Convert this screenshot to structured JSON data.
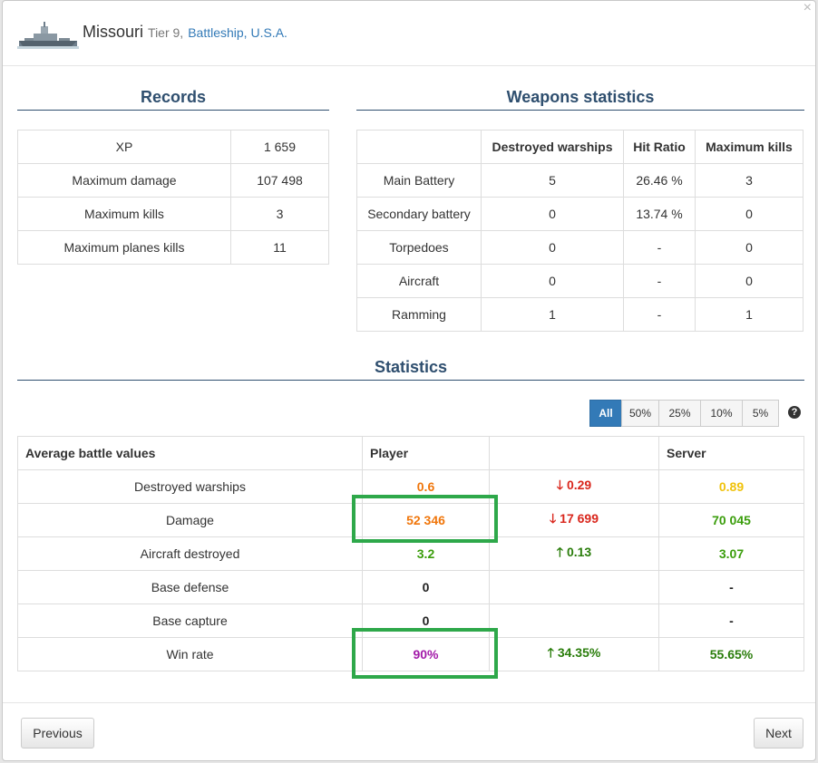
{
  "header": {
    "ship_name": "Missouri",
    "tier": "Tier 9,",
    "type": "Battleship,",
    "nation": "U.S.A."
  },
  "records": {
    "title": "Records",
    "rows": [
      {
        "label": "XP",
        "value": "1 659"
      },
      {
        "label": "Maximum damage",
        "value": "107 498"
      },
      {
        "label": "Maximum kills",
        "value": "3"
      },
      {
        "label": "Maximum planes kills",
        "value": "11"
      }
    ]
  },
  "weapons": {
    "title": "Weapons statistics",
    "headers": [
      "",
      "Destroyed warships",
      "Hit Ratio",
      "Maximum kills"
    ],
    "rows": [
      {
        "label": "Main Battery",
        "destroyed": "5",
        "hit": "26.46 %",
        "max": "3"
      },
      {
        "label": "Secondary battery",
        "destroyed": "0",
        "hit": "13.74 %",
        "max": "0"
      },
      {
        "label": "Torpedoes",
        "destroyed": "0",
        "hit": "-",
        "max": "0"
      },
      {
        "label": "Aircraft",
        "destroyed": "0",
        "hit": "-",
        "max": "0"
      },
      {
        "label": "Ramming",
        "destroyed": "1",
        "hit": "-",
        "max": "1"
      }
    ]
  },
  "statistics": {
    "title": "Statistics",
    "filters": [
      "All",
      "50%",
      "25%",
      "10%",
      "5%"
    ],
    "help": "?",
    "headers": [
      "Average battle values",
      "Player",
      "",
      "Server"
    ],
    "rows": [
      {
        "label": "Destroyed warships",
        "player": "0.6",
        "diff": "0.29",
        "diff_dir": "down",
        "server": "0.89"
      },
      {
        "label": "Damage",
        "player": "52 346",
        "diff": "17 699",
        "diff_dir": "down",
        "server": "70 045"
      },
      {
        "label": "Aircraft destroyed",
        "player": "3.2",
        "diff": "0.13",
        "diff_dir": "up",
        "server": "3.07"
      },
      {
        "label": "Base defense",
        "player": "0",
        "diff": "",
        "diff_dir": "",
        "server": "-"
      },
      {
        "label": "Base capture",
        "player": "0",
        "diff": "",
        "diff_dir": "",
        "server": "-"
      },
      {
        "label": "Win rate",
        "player": "90%",
        "diff": "34.35%",
        "diff_dir": "up",
        "server": "55.65%"
      }
    ]
  },
  "footer": {
    "previous": "Previous",
    "next": "Next"
  },
  "close_icon": "×"
}
